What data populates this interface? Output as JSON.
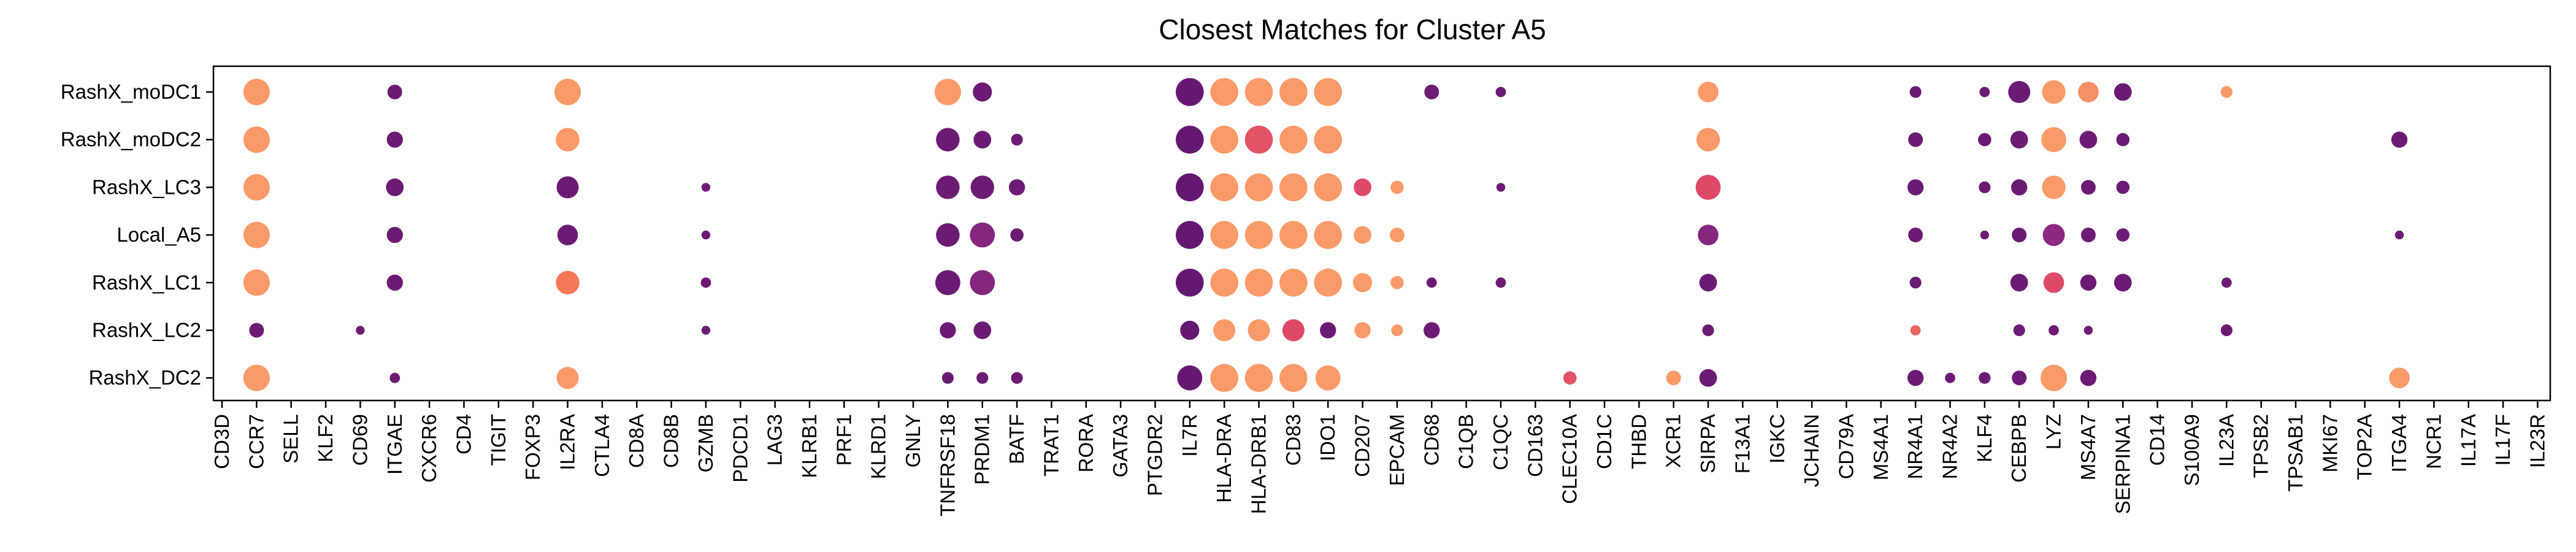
{
  "chart_data": {
    "type": "dot",
    "title": "Closest Matches for Cluster A5",
    "xlabel": "",
    "ylabel": "",
    "rows": [
      "RashX_moDC1",
      "RashX_moDC2",
      "RashX_LC3",
      "Local_A5",
      "RashX_LC1",
      "RashX_LC2",
      "RashX_DC2"
    ],
    "genes": [
      "CD3D",
      "CCR7",
      "SELL",
      "KLF2",
      "CD69",
      "ITGAE",
      "CXCR6",
      "CD4",
      "TIGIT",
      "FOXP3",
      "IL2RA",
      "CTLA4",
      "CD8A",
      "CD8B",
      "GZMB",
      "PDCD1",
      "LAG3",
      "KLRB1",
      "PRF1",
      "KLRD1",
      "GNLY",
      "TNFRSF18",
      "PRDM1",
      "BATF",
      "TRAT1",
      "RORA",
      "GATA3",
      "PTGDR2",
      "IL7R",
      "HLA-DRA",
      "HLA-DRB1",
      "CD83",
      "IDO1",
      "CD207",
      "EPCAM",
      "CD68",
      "C1QB",
      "C1QC",
      "CD163",
      "CLEC10A",
      "CD1C",
      "THBD",
      "XCR1",
      "SIRPA",
      "F13A1",
      "IGKC",
      "JCHAIN",
      "CD79A",
      "MS4A1",
      "NR4A1",
      "NR4A2",
      "KLF4",
      "CEBPB",
      "LYZ",
      "MS4A7",
      "SERPINA1",
      "CD14",
      "S100A9",
      "IL23A",
      "TPSB2",
      "TPSAB1",
      "MKI67",
      "TOP2A",
      "ITGA4",
      "NCR1",
      "IL17A",
      "IL17F",
      "IL23R"
    ],
    "size_note": "size: relative dot size 0-1; color: expression level 0 (dark purple) to 1 (light orange)",
    "dots": [
      {
        "row": "RashX_moDC1",
        "gene": "CCR7",
        "size": 0.9,
        "color": 0.95
      },
      {
        "row": "RashX_moDC1",
        "gene": "ITGAE",
        "size": 0.5,
        "color": 0.1
      },
      {
        "row": "RashX_moDC1",
        "gene": "IL2RA",
        "size": 0.9,
        "color": 0.95
      },
      {
        "row": "RashX_moDC1",
        "gene": "TNFRSF18",
        "size": 0.9,
        "color": 0.95
      },
      {
        "row": "RashX_moDC1",
        "gene": "PRDM1",
        "size": 0.65,
        "color": 0.1
      },
      {
        "row": "RashX_moDC1",
        "gene": "IL7R",
        "size": 0.95,
        "color": 0.05
      },
      {
        "row": "RashX_moDC1",
        "gene": "HLA-DRA",
        "size": 0.95,
        "color": 0.95
      },
      {
        "row": "RashX_moDC1",
        "gene": "HLA-DRB1",
        "size": 0.95,
        "color": 0.95
      },
      {
        "row": "RashX_moDC1",
        "gene": "CD83",
        "size": 0.95,
        "color": 0.95
      },
      {
        "row": "RashX_moDC1",
        "gene": "IDO1",
        "size": 0.95,
        "color": 0.95
      },
      {
        "row": "RashX_moDC1",
        "gene": "CD68",
        "size": 0.5,
        "color": 0.1
      },
      {
        "row": "RashX_moDC1",
        "gene": "C1QC",
        "size": 0.35,
        "color": 0.1
      },
      {
        "row": "RashX_moDC1",
        "gene": "SIRPA",
        "size": 0.7,
        "color": 0.95
      },
      {
        "row": "RashX_moDC1",
        "gene": "NR4A1",
        "size": 0.4,
        "color": 0.1
      },
      {
        "row": "RashX_moDC1",
        "gene": "KLF4",
        "size": 0.35,
        "color": 0.1
      },
      {
        "row": "RashX_moDC1",
        "gene": "CEBPB",
        "size": 0.75,
        "color": 0.1
      },
      {
        "row": "RashX_moDC1",
        "gene": "LYZ",
        "size": 0.8,
        "color": 0.95
      },
      {
        "row": "RashX_moDC1",
        "gene": "MS4A7",
        "size": 0.7,
        "color": 0.9
      },
      {
        "row": "RashX_moDC1",
        "gene": "SERPINA1",
        "size": 0.6,
        "color": 0.1
      },
      {
        "row": "RashX_moDC1",
        "gene": "IL23A",
        "size": 0.4,
        "color": 0.95
      },
      {
        "row": "RashX_moDC2",
        "gene": "CCR7",
        "size": 0.9,
        "color": 0.95
      },
      {
        "row": "RashX_moDC2",
        "gene": "ITGAE",
        "size": 0.55,
        "color": 0.1
      },
      {
        "row": "RashX_moDC2",
        "gene": "IL2RA",
        "size": 0.8,
        "color": 0.95
      },
      {
        "row": "RashX_moDC2",
        "gene": "TNFRSF18",
        "size": 0.8,
        "color": 0.1
      },
      {
        "row": "RashX_moDC2",
        "gene": "PRDM1",
        "size": 0.6,
        "color": 0.1
      },
      {
        "row": "RashX_moDC2",
        "gene": "BATF",
        "size": 0.4,
        "color": 0.1
      },
      {
        "row": "RashX_moDC2",
        "gene": "IL7R",
        "size": 0.95,
        "color": 0.05
      },
      {
        "row": "RashX_moDC2",
        "gene": "HLA-DRA",
        "size": 0.95,
        "color": 0.95
      },
      {
        "row": "RashX_moDC2",
        "gene": "HLA-DRB1",
        "size": 0.95,
        "color": 0.6
      },
      {
        "row": "RashX_moDC2",
        "gene": "CD83",
        "size": 0.95,
        "color": 0.95
      },
      {
        "row": "RashX_moDC2",
        "gene": "IDO1",
        "size": 0.95,
        "color": 0.95
      },
      {
        "row": "RashX_moDC2",
        "gene": "SIRPA",
        "size": 0.8,
        "color": 0.95
      },
      {
        "row": "RashX_moDC2",
        "gene": "NR4A1",
        "size": 0.5,
        "color": 0.1
      },
      {
        "row": "RashX_moDC2",
        "gene": "KLF4",
        "size": 0.45,
        "color": 0.1
      },
      {
        "row": "RashX_moDC2",
        "gene": "CEBPB",
        "size": 0.6,
        "color": 0.1
      },
      {
        "row": "RashX_moDC2",
        "gene": "LYZ",
        "size": 0.85,
        "color": 0.95
      },
      {
        "row": "RashX_moDC2",
        "gene": "MS4A7",
        "size": 0.6,
        "color": 0.1
      },
      {
        "row": "RashX_moDC2",
        "gene": "SERPINA1",
        "size": 0.45,
        "color": 0.1
      },
      {
        "row": "RashX_moDC2",
        "gene": "ITGA4",
        "size": 0.55,
        "color": 0.1
      },
      {
        "row": "RashX_LC3",
        "gene": "CCR7",
        "size": 0.9,
        "color": 0.95
      },
      {
        "row": "RashX_LC3",
        "gene": "ITGAE",
        "size": 0.6,
        "color": 0.1
      },
      {
        "row": "RashX_LC3",
        "gene": "IL2RA",
        "size": 0.75,
        "color": 0.1
      },
      {
        "row": "RashX_LC3",
        "gene": "GZMB",
        "size": 0.3,
        "color": 0.1
      },
      {
        "row": "RashX_LC3",
        "gene": "TNFRSF18",
        "size": 0.8,
        "color": 0.1
      },
      {
        "row": "RashX_LC3",
        "gene": "PRDM1",
        "size": 0.8,
        "color": 0.1
      },
      {
        "row": "RashX_LC3",
        "gene": "BATF",
        "size": 0.55,
        "color": 0.1
      },
      {
        "row": "RashX_LC3",
        "gene": "IL7R",
        "size": 0.95,
        "color": 0.05
      },
      {
        "row": "RashX_LC3",
        "gene": "HLA-DRA",
        "size": 0.95,
        "color": 0.95
      },
      {
        "row": "RashX_LC3",
        "gene": "HLA-DRB1",
        "size": 0.95,
        "color": 0.95
      },
      {
        "row": "RashX_LC3",
        "gene": "CD83",
        "size": 0.95,
        "color": 0.95
      },
      {
        "row": "RashX_LC3",
        "gene": "IDO1",
        "size": 0.95,
        "color": 0.95
      },
      {
        "row": "RashX_LC3",
        "gene": "CD207",
        "size": 0.6,
        "color": 0.55
      },
      {
        "row": "RashX_LC3",
        "gene": "EPCAM",
        "size": 0.45,
        "color": 0.95
      },
      {
        "row": "RashX_LC3",
        "gene": "C1QC",
        "size": 0.3,
        "color": 0.1
      },
      {
        "row": "RashX_LC3",
        "gene": "SIRPA",
        "size": 0.85,
        "color": 0.55
      },
      {
        "row": "RashX_LC3",
        "gene": "NR4A1",
        "size": 0.55,
        "color": 0.1
      },
      {
        "row": "RashX_LC3",
        "gene": "KLF4",
        "size": 0.4,
        "color": 0.1
      },
      {
        "row": "RashX_LC3",
        "gene": "CEBPB",
        "size": 0.55,
        "color": 0.1
      },
      {
        "row": "RashX_LC3",
        "gene": "LYZ",
        "size": 0.8,
        "color": 0.95
      },
      {
        "row": "RashX_LC3",
        "gene": "MS4A7",
        "size": 0.5,
        "color": 0.1
      },
      {
        "row": "RashX_LC3",
        "gene": "SERPINA1",
        "size": 0.45,
        "color": 0.1
      },
      {
        "row": "Local_A5",
        "gene": "CCR7",
        "size": 0.9,
        "color": 0.95
      },
      {
        "row": "Local_A5",
        "gene": "ITGAE",
        "size": 0.55,
        "color": 0.1
      },
      {
        "row": "Local_A5",
        "gene": "IL2RA",
        "size": 0.7,
        "color": 0.1
      },
      {
        "row": "Local_A5",
        "gene": "GZMB",
        "size": 0.3,
        "color": 0.1
      },
      {
        "row": "Local_A5",
        "gene": "TNFRSF18",
        "size": 0.8,
        "color": 0.1
      },
      {
        "row": "Local_A5",
        "gene": "PRDM1",
        "size": 0.85,
        "color": 0.25
      },
      {
        "row": "Local_A5",
        "gene": "BATF",
        "size": 0.45,
        "color": 0.1
      },
      {
        "row": "Local_A5",
        "gene": "IL7R",
        "size": 0.95,
        "color": 0.05
      },
      {
        "row": "Local_A5",
        "gene": "HLA-DRA",
        "size": 0.95,
        "color": 0.95
      },
      {
        "row": "Local_A5",
        "gene": "HLA-DRB1",
        "size": 0.95,
        "color": 0.95
      },
      {
        "row": "Local_A5",
        "gene": "CD83",
        "size": 0.95,
        "color": 0.95
      },
      {
        "row": "Local_A5",
        "gene": "IDO1",
        "size": 0.95,
        "color": 0.95
      },
      {
        "row": "Local_A5",
        "gene": "CD207",
        "size": 0.6,
        "color": 0.95
      },
      {
        "row": "Local_A5",
        "gene": "EPCAM",
        "size": 0.5,
        "color": 0.95
      },
      {
        "row": "Local_A5",
        "gene": "SIRPA",
        "size": 0.7,
        "color": 0.25
      },
      {
        "row": "Local_A5",
        "gene": "NR4A1",
        "size": 0.5,
        "color": 0.1
      },
      {
        "row": "Local_A5",
        "gene": "KLF4",
        "size": 0.3,
        "color": 0.1
      },
      {
        "row": "Local_A5",
        "gene": "CEBPB",
        "size": 0.5,
        "color": 0.1
      },
      {
        "row": "Local_A5",
        "gene": "LYZ",
        "size": 0.75,
        "color": 0.3
      },
      {
        "row": "Local_A5",
        "gene": "MS4A7",
        "size": 0.5,
        "color": 0.1
      },
      {
        "row": "Local_A5",
        "gene": "SERPINA1",
        "size": 0.45,
        "color": 0.1
      },
      {
        "row": "Local_A5",
        "gene": "ITGA4",
        "size": 0.3,
        "color": 0.1
      },
      {
        "row": "RashX_LC1",
        "gene": "CCR7",
        "size": 0.9,
        "color": 0.95
      },
      {
        "row": "RashX_LC1",
        "gene": "ITGAE",
        "size": 0.55,
        "color": 0.1
      },
      {
        "row": "RashX_LC1",
        "gene": "IL2RA",
        "size": 0.8,
        "color": 0.8
      },
      {
        "row": "RashX_LC1",
        "gene": "GZMB",
        "size": 0.35,
        "color": 0.1
      },
      {
        "row": "RashX_LC1",
        "gene": "TNFRSF18",
        "size": 0.85,
        "color": 0.1
      },
      {
        "row": "RashX_LC1",
        "gene": "PRDM1",
        "size": 0.85,
        "color": 0.25
      },
      {
        "row": "RashX_LC1",
        "gene": "IL7R",
        "size": 0.95,
        "color": 0.05
      },
      {
        "row": "RashX_LC1",
        "gene": "HLA-DRA",
        "size": 0.95,
        "color": 0.95
      },
      {
        "row": "RashX_LC1",
        "gene": "HLA-DRB1",
        "size": 0.95,
        "color": 0.95
      },
      {
        "row": "RashX_LC1",
        "gene": "CD83",
        "size": 0.95,
        "color": 0.95
      },
      {
        "row": "RashX_LC1",
        "gene": "IDO1",
        "size": 0.95,
        "color": 0.95
      },
      {
        "row": "RashX_LC1",
        "gene": "CD207",
        "size": 0.65,
        "color": 0.95
      },
      {
        "row": "RashX_LC1",
        "gene": "EPCAM",
        "size": 0.45,
        "color": 0.95
      },
      {
        "row": "RashX_LC1",
        "gene": "CD68",
        "size": 0.35,
        "color": 0.1
      },
      {
        "row": "RashX_LC1",
        "gene": "C1QC",
        "size": 0.35,
        "color": 0.1
      },
      {
        "row": "RashX_LC1",
        "gene": "SIRPA",
        "size": 0.6,
        "color": 0.1
      },
      {
        "row": "RashX_LC1",
        "gene": "NR4A1",
        "size": 0.4,
        "color": 0.1
      },
      {
        "row": "RashX_LC1",
        "gene": "CEBPB",
        "size": 0.6,
        "color": 0.1
      },
      {
        "row": "RashX_LC1",
        "gene": "LYZ",
        "size": 0.7,
        "color": 0.55
      },
      {
        "row": "RashX_LC1",
        "gene": "MS4A7",
        "size": 0.55,
        "color": 0.1
      },
      {
        "row": "RashX_LC1",
        "gene": "SERPINA1",
        "size": 0.6,
        "color": 0.1
      },
      {
        "row": "RashX_LC1",
        "gene": "IL23A",
        "size": 0.35,
        "color": 0.1
      },
      {
        "row": "RashX_LC2",
        "gene": "CCR7",
        "size": 0.5,
        "color": 0.1
      },
      {
        "row": "RashX_LC2",
        "gene": "CD69",
        "size": 0.3,
        "color": 0.1
      },
      {
        "row": "RashX_LC2",
        "gene": "GZMB",
        "size": 0.3,
        "color": 0.1
      },
      {
        "row": "RashX_LC2",
        "gene": "TNFRSF18",
        "size": 0.55,
        "color": 0.1
      },
      {
        "row": "RashX_LC2",
        "gene": "PRDM1",
        "size": 0.6,
        "color": 0.1
      },
      {
        "row": "RashX_LC2",
        "gene": "IL7R",
        "size": 0.65,
        "color": 0.05
      },
      {
        "row": "RashX_LC2",
        "gene": "HLA-DRA",
        "size": 0.75,
        "color": 0.95
      },
      {
        "row": "RashX_LC2",
        "gene": "HLA-DRB1",
        "size": 0.75,
        "color": 0.95
      },
      {
        "row": "RashX_LC2",
        "gene": "CD83",
        "size": 0.75,
        "color": 0.55
      },
      {
        "row": "RashX_LC2",
        "gene": "IDO1",
        "size": 0.55,
        "color": 0.1
      },
      {
        "row": "RashX_LC2",
        "gene": "CD207",
        "size": 0.55,
        "color": 0.95
      },
      {
        "row": "RashX_LC2",
        "gene": "EPCAM",
        "size": 0.4,
        "color": 0.95
      },
      {
        "row": "RashX_LC2",
        "gene": "CD68",
        "size": 0.55,
        "color": 0.1
      },
      {
        "row": "RashX_LC2",
        "gene": "SIRPA",
        "size": 0.4,
        "color": 0.1
      },
      {
        "row": "RashX_LC2",
        "gene": "NR4A1",
        "size": 0.35,
        "color": 0.7
      },
      {
        "row": "RashX_LC2",
        "gene": "CEBPB",
        "size": 0.4,
        "color": 0.1
      },
      {
        "row": "RashX_LC2",
        "gene": "LYZ",
        "size": 0.35,
        "color": 0.1
      },
      {
        "row": "RashX_LC2",
        "gene": "MS4A7",
        "size": 0.3,
        "color": 0.1
      },
      {
        "row": "RashX_LC2",
        "gene": "IL23A",
        "size": 0.4,
        "color": 0.1
      },
      {
        "row": "RashX_DC2",
        "gene": "CCR7",
        "size": 0.9,
        "color": 0.95
      },
      {
        "row": "RashX_DC2",
        "gene": "ITGAE",
        "size": 0.35,
        "color": 0.1
      },
      {
        "row": "RashX_DC2",
        "gene": "IL2RA",
        "size": 0.75,
        "color": 0.95
      },
      {
        "row": "RashX_DC2",
        "gene": "TNFRSF18",
        "size": 0.4,
        "color": 0.1
      },
      {
        "row": "RashX_DC2",
        "gene": "PRDM1",
        "size": 0.4,
        "color": 0.1
      },
      {
        "row": "RashX_DC2",
        "gene": "BATF",
        "size": 0.4,
        "color": 0.1
      },
      {
        "row": "RashX_DC2",
        "gene": "IL7R",
        "size": 0.85,
        "color": 0.05
      },
      {
        "row": "RashX_DC2",
        "gene": "HLA-DRA",
        "size": 0.95,
        "color": 0.95
      },
      {
        "row": "RashX_DC2",
        "gene": "HLA-DRB1",
        "size": 0.95,
        "color": 0.95
      },
      {
        "row": "RashX_DC2",
        "gene": "CD83",
        "size": 0.95,
        "color": 0.95
      },
      {
        "row": "RashX_DC2",
        "gene": "IDO1",
        "size": 0.85,
        "color": 0.95
      },
      {
        "row": "RashX_DC2",
        "gene": "CLEC10A",
        "size": 0.45,
        "color": 0.6
      },
      {
        "row": "RashX_DC2",
        "gene": "XCR1",
        "size": 0.5,
        "color": 0.95
      },
      {
        "row": "RashX_DC2",
        "gene": "SIRPA",
        "size": 0.6,
        "color": 0.1
      },
      {
        "row": "RashX_DC2",
        "gene": "NR4A1",
        "size": 0.55,
        "color": 0.1
      },
      {
        "row": "RashX_DC2",
        "gene": "NR4A2",
        "size": 0.35,
        "color": 0.1
      },
      {
        "row": "RashX_DC2",
        "gene": "KLF4",
        "size": 0.4,
        "color": 0.1
      },
      {
        "row": "RashX_DC2",
        "gene": "CEBPB",
        "size": 0.5,
        "color": 0.1
      },
      {
        "row": "RashX_DC2",
        "gene": "LYZ",
        "size": 0.9,
        "color": 0.95
      },
      {
        "row": "RashX_DC2",
        "gene": "MS4A7",
        "size": 0.55,
        "color": 0.1
      },
      {
        "row": "RashX_DC2",
        "gene": "ITGA4",
        "size": 0.7,
        "color": 0.95
      }
    ]
  }
}
